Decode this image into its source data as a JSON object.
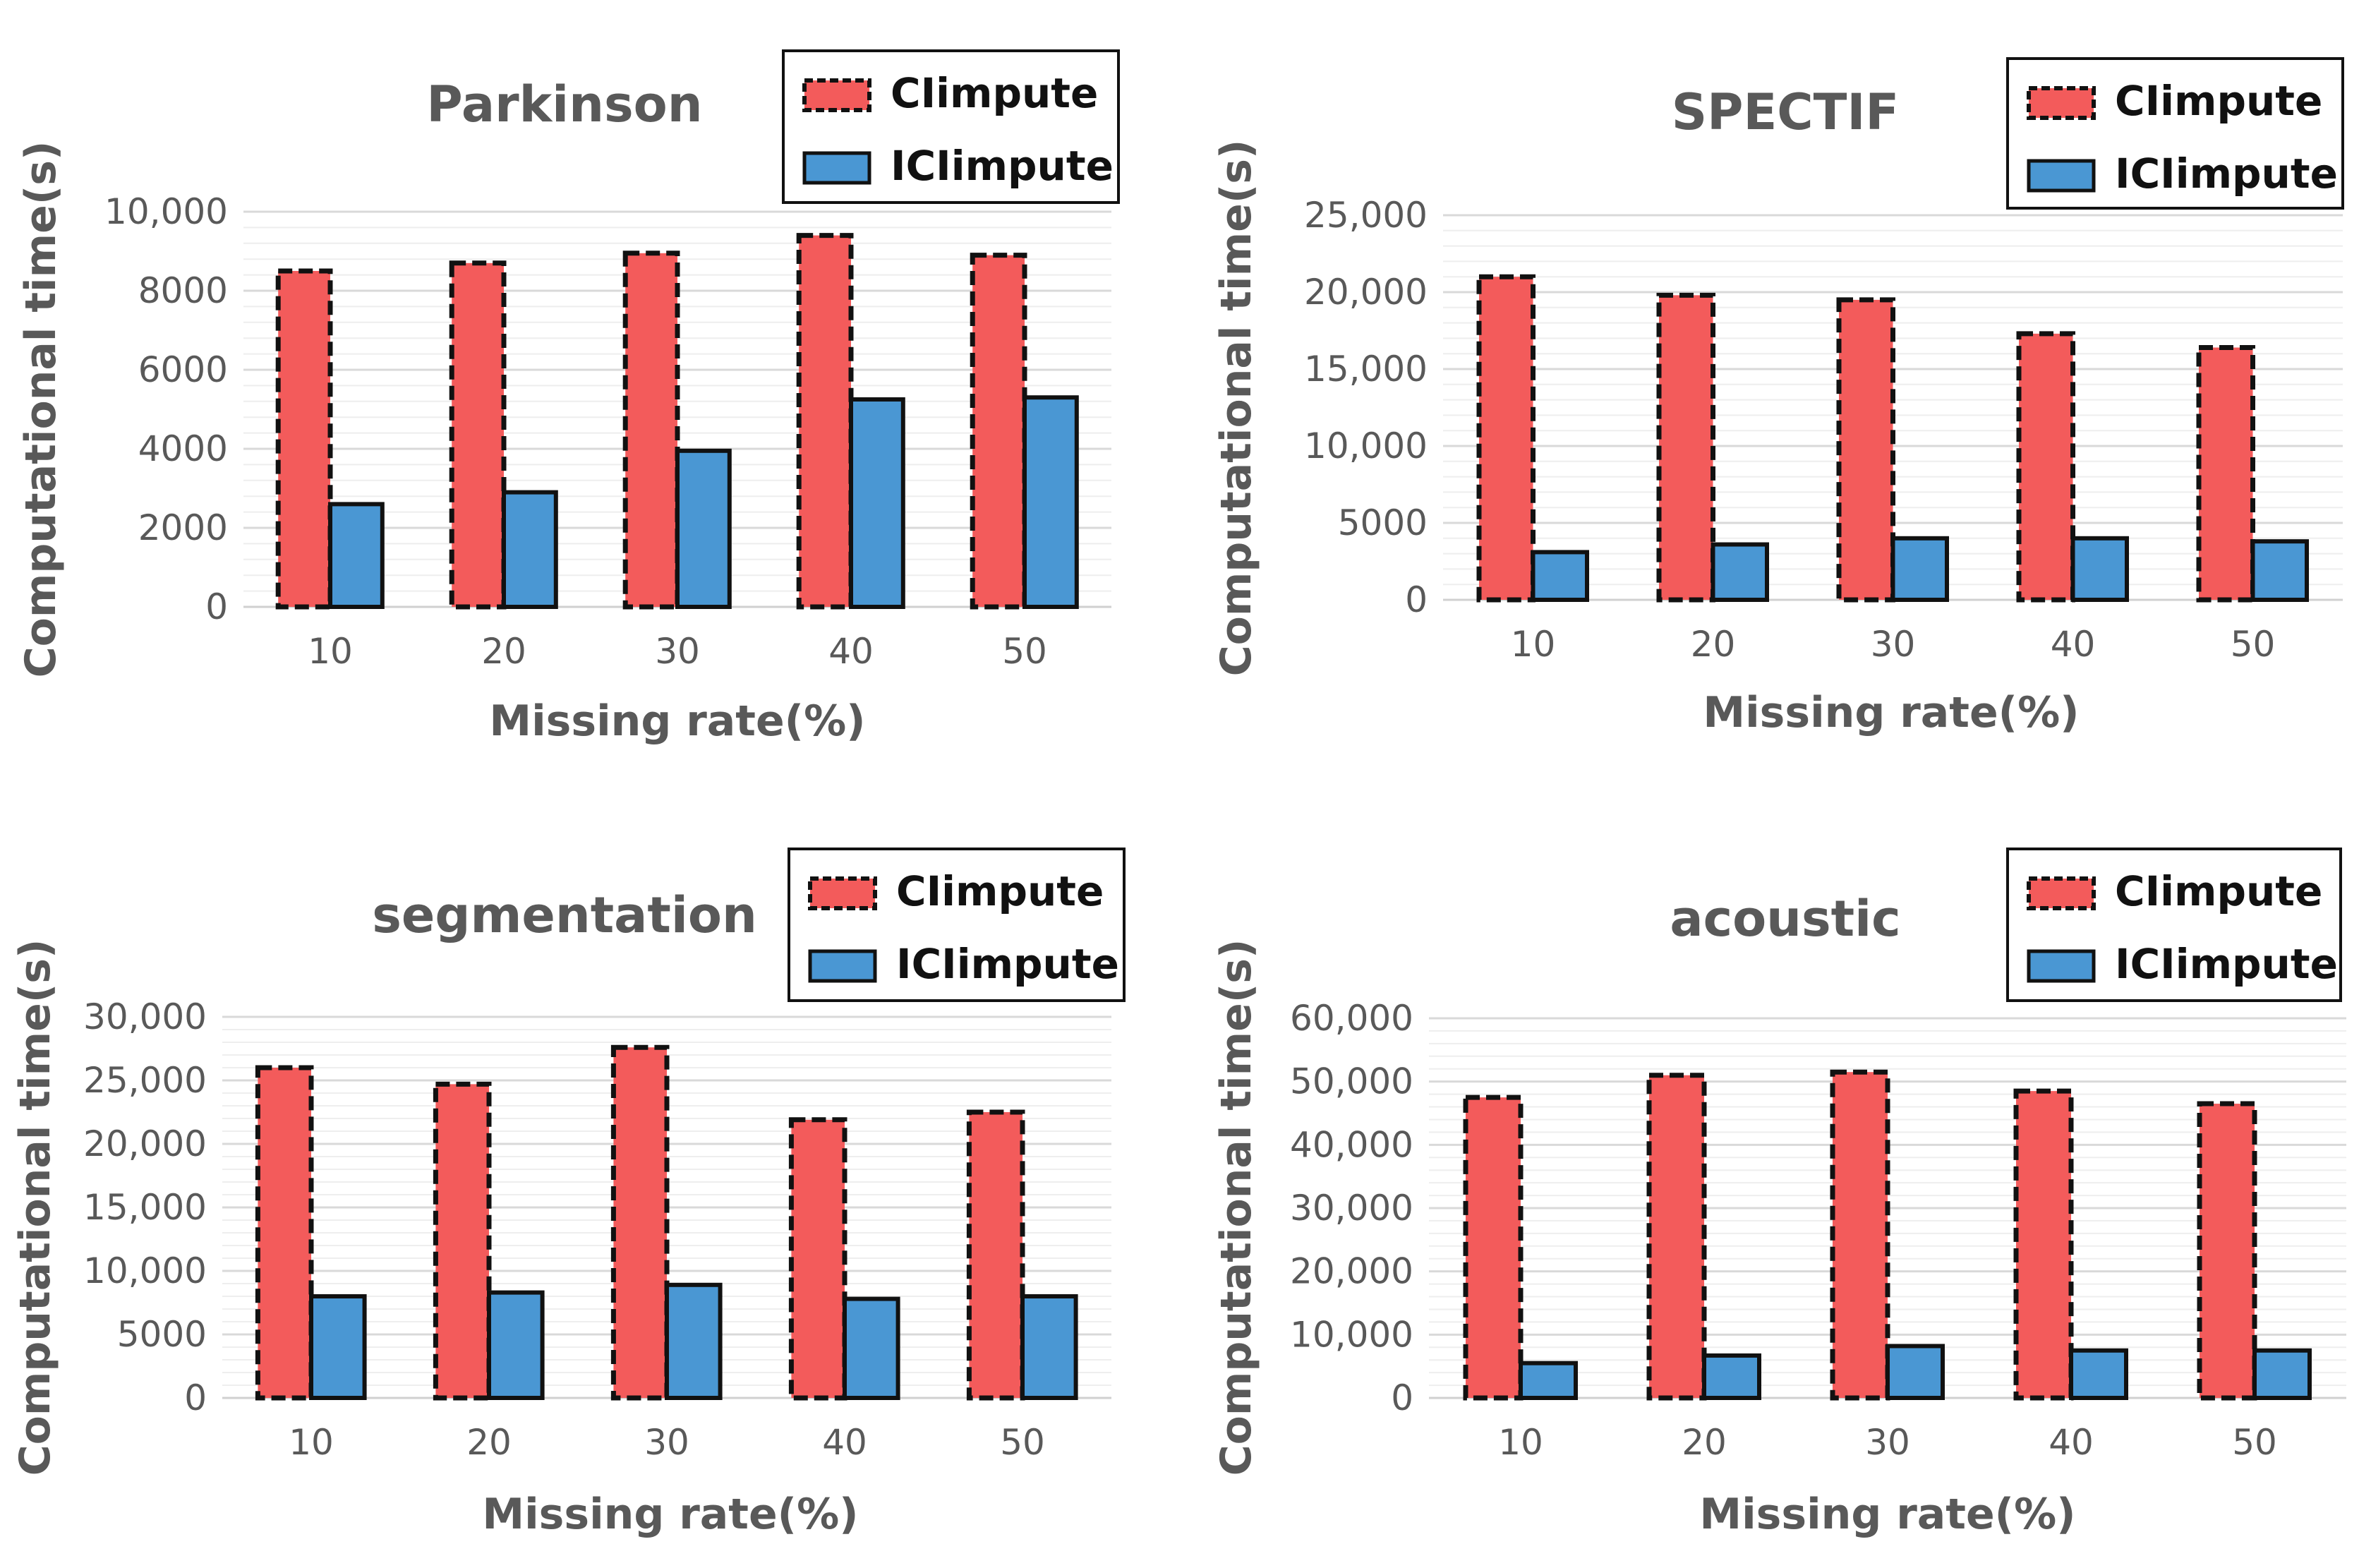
{
  "chart_data": [
    {
      "type": "bar",
      "title": "Parkinson",
      "xlabel": "Missing rate(%)",
      "ylabel": "Computational time(s)",
      "categories": [
        "10",
        "20",
        "30",
        "40",
        "50"
      ],
      "ylim": [
        0,
        10000
      ],
      "yticks": [
        0,
        2000,
        4000,
        6000,
        8000,
        10000
      ],
      "ytick_labels": [
        "0",
        "2000",
        "4000",
        "6000",
        "8000",
        "10,000"
      ],
      "series": [
        {
          "name": "CIimpute",
          "values": [
            8500,
            8700,
            8950,
            9400,
            8900
          ]
        },
        {
          "name": "ICIimpute",
          "values": [
            2600,
            2900,
            3950,
            5250,
            5300
          ]
        }
      ],
      "legend_position": "top-right",
      "grid": true
    },
    {
      "type": "bar",
      "title": "SPECTIF",
      "xlabel": "Missing rate(%)",
      "ylabel": "Computational time(s)",
      "categories": [
        "10",
        "20",
        "30",
        "40",
        "50"
      ],
      "ylim": [
        0,
        25000
      ],
      "yticks": [
        0,
        5000,
        10000,
        15000,
        20000,
        25000
      ],
      "ytick_labels": [
        "0",
        "5000",
        "10,000",
        "15,000",
        "20,000",
        "25,000"
      ],
      "series": [
        {
          "name": "CIimpute",
          "values": [
            21000,
            19800,
            19500,
            17300,
            16400
          ]
        },
        {
          "name": "ICIimpute",
          "values": [
            3100,
            3600,
            4000,
            4000,
            3800
          ]
        }
      ],
      "legend_position": "top-right",
      "grid": true
    },
    {
      "type": "bar",
      "title": "segmentation",
      "xlabel": "Missing rate(%)",
      "ylabel": "Computational time(s)",
      "categories": [
        "10",
        "20",
        "30",
        "40",
        "50"
      ],
      "ylim": [
        0,
        30000
      ],
      "yticks": [
        0,
        5000,
        10000,
        15000,
        20000,
        25000,
        30000
      ],
      "ytick_labels": [
        "0",
        "5000",
        "10,000",
        "15,000",
        "20,000",
        "25,000",
        "30,000"
      ],
      "series": [
        {
          "name": "CIimpute",
          "values": [
            26000,
            24700,
            27600,
            21900,
            22500
          ]
        },
        {
          "name": "ICIimpute",
          "values": [
            8000,
            8300,
            8900,
            7800,
            8000
          ]
        }
      ],
      "legend_position": "top-right",
      "grid": true
    },
    {
      "type": "bar",
      "title": "acoustic",
      "xlabel": "Missing rate(%)",
      "ylabel": "Computational time(s)",
      "categories": [
        "10",
        "20",
        "30",
        "40",
        "50"
      ],
      "ylim": [
        0,
        60000
      ],
      "yticks": [
        0,
        10000,
        20000,
        30000,
        40000,
        50000,
        60000
      ],
      "ytick_labels": [
        "0",
        "10,000",
        "20,000",
        "30,000",
        "40,000",
        "50,000",
        "60,000"
      ],
      "series": [
        {
          "name": "CIimpute",
          "values": [
            47500,
            51000,
            51500,
            48500,
            46500
          ]
        },
        {
          "name": "ICIimpute",
          "values": [
            5500,
            6700,
            8200,
            7500,
            7500
          ]
        }
      ],
      "legend_position": "top-right",
      "grid": true
    }
  ],
  "colors": {
    "CIimpute": "#f35b5b",
    "ICIimpute": "#4a97d3",
    "axis_text": "#595959",
    "grid": "#d9d9d9"
  }
}
